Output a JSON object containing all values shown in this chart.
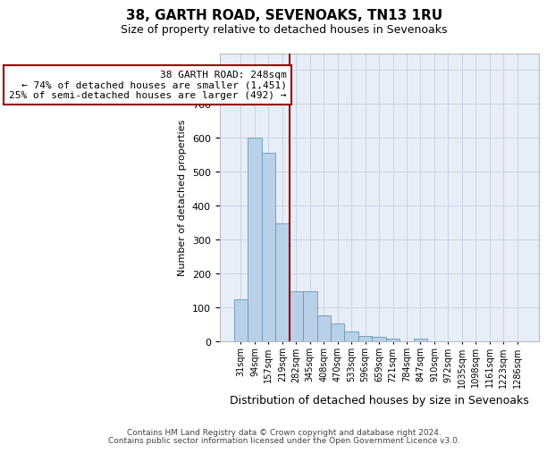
{
  "title1": "38, GARTH ROAD, SEVENOAKS, TN13 1RU",
  "title2": "Size of property relative to detached houses in Sevenoaks",
  "xlabel": "Distribution of detached houses by size in Sevenoaks",
  "ylabel": "Number of detached properties",
  "footer1": "Contains HM Land Registry data © Crown copyright and database right 2024.",
  "footer2": "Contains public sector information licensed under the Open Government Licence v3.0.",
  "annotation_line1": "38 GARTH ROAD: 248sqm",
  "annotation_line2": "← 74% of detached houses are smaller (1,451)",
  "annotation_line3": "25% of semi-detached houses are larger (492) →",
  "bar_color": "#b8d0e8",
  "bar_edge_color": "#6699bb",
  "vline_color": "#990000",
  "annotation_box_edge_color": "#990000",
  "bg_color": "#e8eef8",
  "categories": [
    "31sqm",
    "94sqm",
    "157sqm",
    "219sqm",
    "282sqm",
    "345sqm",
    "408sqm",
    "470sqm",
    "533sqm",
    "596sqm",
    "659sqm",
    "721sqm",
    "784sqm",
    "847sqm",
    "910sqm",
    "972sqm",
    "1035sqm",
    "1098sqm",
    "1161sqm",
    "1223sqm",
    "1286sqm"
  ],
  "values": [
    125,
    600,
    555,
    348,
    148,
    148,
    78,
    52,
    30,
    15,
    13,
    8,
    0,
    8,
    0,
    0,
    0,
    0,
    0,
    0,
    0
  ],
  "ylim": [
    0,
    850
  ],
  "yticks": [
    0,
    100,
    200,
    300,
    400,
    500,
    600,
    700,
    800
  ],
  "grid_color": "#c8d4e4",
  "title1_fontsize": 11,
  "title2_fontsize": 9,
  "ylabel_fontsize": 8,
  "xlabel_fontsize": 9,
  "footer_fontsize": 6.5,
  "annot_fontsize": 8
}
